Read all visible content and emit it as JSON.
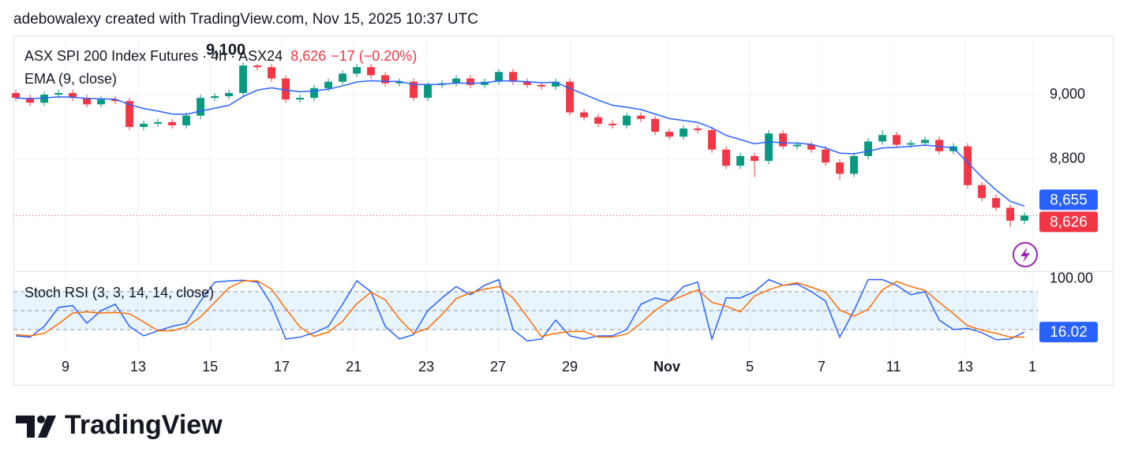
{
  "header": "adebowalexy created with TradingView.com, Nov 15, 2025 10:37 UTC",
  "brand": "TradingView",
  "chart_data": [
    {
      "type": "candlestick",
      "title": "ASX SPI 200 Index Futures · 4h · ASX24",
      "last_label": "8,626",
      "change_label": "−17 (−0.20%)",
      "x": [
        0,
        1,
        2,
        3,
        4,
        5,
        6,
        7,
        8,
        9,
        10,
        11,
        12,
        13,
        14,
        15,
        16,
        17,
        18,
        19,
        20,
        21,
        22,
        23,
        24,
        25,
        26,
        27,
        28,
        29,
        30,
        31,
        32,
        33,
        34,
        35,
        36,
        37,
        38,
        39,
        40,
        41,
        42,
        43,
        44,
        45,
        46,
        47,
        48,
        49,
        50,
        51,
        52,
        53,
        54,
        55,
        56,
        57,
        58,
        59,
        60,
        61,
        62,
        63,
        64,
        65,
        66,
        67,
        68,
        69,
        70,
        71
      ],
      "open": [
        9005,
        8990,
        8975,
        9000,
        9005,
        8990,
        8970,
        8985,
        8980,
        8900,
        8910,
        8915,
        8905,
        8935,
        8990,
        8995,
        9005,
        9090,
        9085,
        9050,
        8985,
        8990,
        9020,
        9040,
        9065,
        9085,
        9060,
        9035,
        9040,
        8990,
        9030,
        9035,
        9050,
        9030,
        9040,
        9070,
        9040,
        9030,
        9025,
        9040,
        8945,
        8930,
        8910,
        8905,
        8935,
        8925,
        8885,
        8870,
        8895,
        8890,
        8830,
        8780,
        8810,
        8795,
        8880,
        8840,
        8845,
        8830,
        8790,
        8755,
        8810,
        8855,
        8875,
        8845,
        8850,
        8860,
        8825,
        8840,
        8720,
        8680,
        8650,
        8610
      ],
      "high": [
        9015,
        9000,
        9010,
        9015,
        9015,
        9000,
        8995,
        8995,
        8990,
        8920,
        8925,
        8925,
        8945,
        9000,
        9005,
        9015,
        9100,
        9095,
        9095,
        9060,
        9000,
        9030,
        9050,
        9075,
        9095,
        9095,
        9070,
        9050,
        9050,
        9040,
        9045,
        9060,
        9060,
        9050,
        9080,
        9080,
        9050,
        9040,
        9050,
        9050,
        8955,
        8940,
        8920,
        8945,
        8945,
        8935,
        8895,
        8905,
        8905,
        8900,
        8840,
        8820,
        8820,
        8890,
        8890,
        8855,
        8855,
        8840,
        8800,
        8820,
        8865,
        8890,
        8885,
        8860,
        8870,
        8870,
        8850,
        8850,
        8730,
        8690,
        8660,
        8636
      ],
      "low": [
        8980,
        8965,
        8965,
        8990,
        8980,
        8960,
        8960,
        8970,
        8890,
        8890,
        8900,
        8895,
        8895,
        8925,
        8980,
        8985,
        8995,
        9075,
        9040,
        8975,
        8975,
        8980,
        9010,
        9030,
        9055,
        9050,
        9025,
        9025,
        8980,
        8980,
        9020,
        9025,
        9020,
        9020,
        9030,
        9030,
        9020,
        9015,
        9015,
        8935,
        8920,
        8900,
        8895,
        8895,
        8915,
        8875,
        8860,
        8860,
        8880,
        8820,
        8770,
        8770,
        8745,
        8785,
        8830,
        8830,
        8820,
        8780,
        8735,
        8745,
        8800,
        8845,
        8835,
        8835,
        8840,
        8815,
        8815,
        8710,
        8670,
        8640,
        8590,
        8600
      ],
      "close": [
        8990,
        8975,
        9000,
        9005,
        8990,
        8970,
        8985,
        8980,
        8900,
        8910,
        8915,
        8905,
        8935,
        8990,
        8995,
        9005,
        9090,
        9085,
        9050,
        8985,
        8990,
        9020,
        9040,
        9065,
        9085,
        9060,
        9035,
        9040,
        8990,
        9030,
        9035,
        9050,
        9030,
        9040,
        9070,
        9040,
        9030,
        9025,
        9040,
        8945,
        8930,
        8910,
        8905,
        8935,
        8925,
        8885,
        8870,
        8895,
        8890,
        8830,
        8780,
        8810,
        8795,
        8880,
        8840,
        8845,
        8830,
        8790,
        8755,
        8810,
        8855,
        8875,
        8845,
        8850,
        8860,
        8825,
        8840,
        8720,
        8680,
        8650,
        8610,
        8626
      ],
      "up_color": "#089981",
      "down_color": "#f23645",
      "series": [
        {
          "name": "EMA (9, close)",
          "color": "#2962ff",
          "values": [
            8990,
            8987,
            8990,
            8993,
            8992,
            8988,
            8987,
            8986,
            8969,
            8957,
            8949,
            8940,
            8939,
            8949,
            8958,
            8967,
            8994,
            9014,
            9021,
            9014,
            9009,
            9011,
            9017,
            9027,
            9039,
            9043,
            9041,
            9041,
            9031,
            9031,
            9032,
            9036,
            9035,
            9036,
            9043,
            9042,
            9040,
            9037,
            9038,
            9019,
            9001,
            8983,
            8967,
            8961,
            8954,
            8940,
            8926,
            8920,
            8914,
            8897,
            8874,
            8861,
            8848,
            8854,
            8851,
            8850,
            8846,
            8835,
            8819,
            8817,
            8825,
            8835,
            8837,
            8840,
            8844,
            8840,
            8835,
            8790,
            8745,
            8705,
            8670,
            8655
          ]
        }
      ],
      "xlim": [
        -0.17,
        71.94
      ],
      "xticks": [
        {
          "value": 3.5,
          "label": "9"
        },
        {
          "value": 8.61,
          "label": "13"
        },
        {
          "value": 13.67,
          "label": "15"
        },
        {
          "value": 18.72,
          "label": "17"
        },
        {
          "value": 23.78,
          "label": "21"
        },
        {
          "value": 28.89,
          "label": "23"
        },
        {
          "value": 33.94,
          "label": "27"
        },
        {
          "value": 39,
          "label": "29"
        },
        {
          "value": 45.83,
          "label": "Nov"
        },
        {
          "value": 51.67,
          "label": "5"
        },
        {
          "value": 56.72,
          "label": "7"
        },
        {
          "value": 61.78,
          "label": "11"
        },
        {
          "value": 66.83,
          "label": "13"
        },
        {
          "value": 71.56,
          "label": "1"
        }
      ],
      "ylim": [
        8456,
        9183
      ],
      "yticks": [
        {
          "value": 9000,
          "label": "9,000"
        },
        {
          "value": 8800,
          "label": "8,800"
        }
      ],
      "annotations": [
        {
          "x": 16,
          "value": 9100,
          "label": "9,100"
        }
      ],
      "price_tags": [
        {
          "value": 8655,
          "label": "8,655",
          "color": "#2962ff"
        },
        {
          "value": 8626,
          "label": "8,626",
          "color": "#f23645"
        }
      ],
      "grid": true
    },
    {
      "type": "line",
      "title": "Stoch RSI (3, 3, 14, 14, close)",
      "series": [
        {
          "color": "#2962ff",
          "values": [
            10,
            8,
            25,
            55,
            58,
            30,
            50,
            60,
            25,
            10,
            18,
            25,
            30,
            65,
            95,
            97,
            98,
            95,
            60,
            5,
            8,
            15,
            25,
            60,
            97,
            80,
            25,
            5,
            12,
            50,
            70,
            88,
            75,
            90,
            99,
            20,
            2,
            5,
            35,
            10,
            5,
            10,
            10,
            20,
            60,
            70,
            65,
            88,
            95,
            5,
            70,
            70,
            80,
            99,
            90,
            92,
            80,
            65,
            8,
            50,
            99,
            99,
            90,
            75,
            80,
            35,
            20,
            22,
            15,
            4,
            5,
            16.02
          ]
        },
        {
          "color": "#ff6d00",
          "values": [
            12,
            10,
            14,
            29,
            46,
            48,
            46,
            47,
            45,
            32,
            18,
            18,
            24,
            40,
            63,
            86,
            97,
            97,
            84,
            53,
            24,
            9,
            16,
            33,
            61,
            79,
            67,
            37,
            14,
            22,
            44,
            69,
            78,
            84,
            88,
            70,
            40,
            9,
            14,
            17,
            17,
            8,
            8,
            13,
            30,
            50,
            65,
            74,
            83,
            63,
            57,
            48,
            73,
            83,
            90,
            94,
            87,
            79,
            51,
            41,
            52,
            83,
            96,
            88,
            82,
            63,
            45,
            26,
            19,
            14,
            8,
            8
          ]
        }
      ],
      "ylim": [
        -20,
        111
      ],
      "yticks": [
        {
          "value": 100,
          "label": "100.00"
        }
      ],
      "levels": [
        80,
        50,
        20
      ],
      "band_color": "#2196f3",
      "price_tags": [
        {
          "value": 16.02,
          "label": "16.02",
          "color": "#2962ff"
        }
      ],
      "grid": false
    }
  ]
}
